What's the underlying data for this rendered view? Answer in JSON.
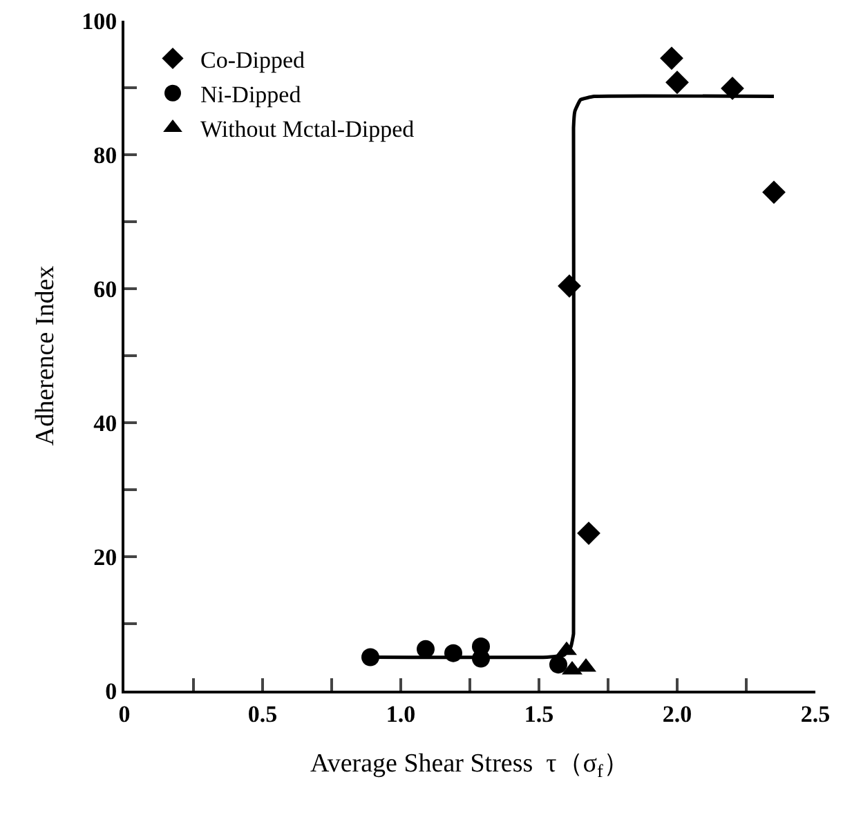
{
  "chart_data": {
    "type": "scatter",
    "xlabel": "Average Shear Stress  τ（σ$_{f}$）",
    "ylabel": "Adherence Index",
    "xlim": [
      0,
      2.5
    ],
    "ylim": [
      0,
      100
    ],
    "xticks": [
      0,
      {
        "value": 0.25,
        "label": null
      },
      0.5,
      {
        "value": 0.75,
        "label": null
      },
      {
        "value": 1,
        "label": "1.0"
      },
      {
        "value": 1.25,
        "label": null
      },
      1.5,
      {
        "value": 1.75,
        "label": null
      },
      {
        "value": 2,
        "label": "2.0"
      },
      {
        "value": 2.25,
        "label": null
      },
      2.5
    ],
    "yticks": [
      0,
      {
        "value": 10,
        "label": null
      },
      20,
      {
        "value": 30,
        "label": null
      },
      40,
      {
        "value": 50,
        "label": null
      },
      60,
      {
        "value": 70,
        "label": null
      },
      80,
      {
        "value": 90,
        "label": null
      },
      100
    ],
    "grid": false,
    "legend": "top left",
    "series": [
      {
        "name": "Co-Dipped",
        "color": "#000000",
        "marker": "diamond",
        "x": [
          1.98,
          2.0,
          2.2,
          2.35,
          1.61,
          1.68
        ],
        "values": [
          94.4,
          90.8,
          89.9,
          74.4,
          60.4,
          23.5
        ]
      },
      {
        "name": "Ni-Dipped",
        "color": "#000000",
        "marker": "circle",
        "x": [
          0.89,
          1.09,
          1.19,
          1.29,
          1.29,
          1.57
        ],
        "values": [
          5.0,
          6.2,
          5.6,
          6.6,
          4.8,
          3.9
        ]
      },
      {
        "name": "Without Mctal-Dipped",
        "color": "#000000",
        "marker": "triangle",
        "x": [
          1.6,
          1.62,
          1.67
        ],
        "values": [
          6.0,
          3.1,
          3.5
        ]
      },
      {
        "type": "line",
        "color": "#000000",
        "marker": "none",
        "x": [
          0.9,
          1.53,
          1.59,
          1.615,
          1.625,
          1.625,
          1.63,
          1.65,
          1.7,
          2.35
        ],
        "values": [
          5.0,
          5.0,
          5.3,
          6.5,
          8.5,
          84,
          86.5,
          88.2,
          88.7,
          88.7
        ]
      }
    ]
  }
}
